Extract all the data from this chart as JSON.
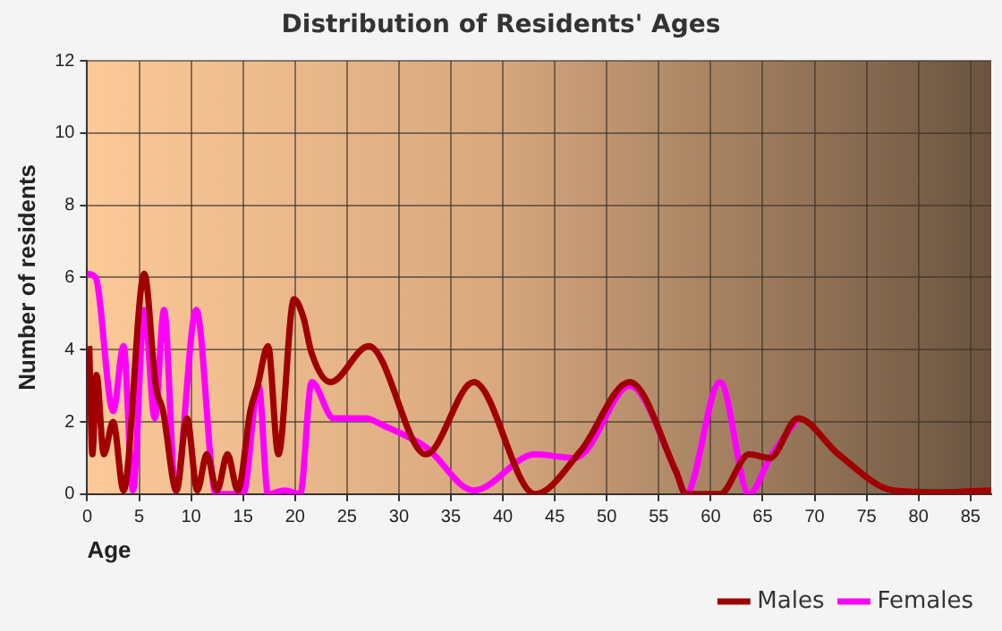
{
  "chart_data": {
    "type": "line",
    "title": "Distribution of Residents' Ages",
    "xlabel": "Age",
    "ylabel": "Number of residents",
    "xlim": [
      0,
      87
    ],
    "xticks": [
      0,
      5,
      10,
      15,
      20,
      25,
      30,
      35,
      40,
      45,
      50,
      55,
      60,
      65,
      70,
      75,
      80,
      85
    ],
    "ylim": [
      0,
      12
    ],
    "yticks": [
      0,
      2,
      4,
      6,
      8,
      10,
      12
    ],
    "grid": true,
    "legend": "bottom right",
    "marker": "none",
    "line_style": "solid",
    "series": [
      {
        "name": "Males",
        "color": "#a00000",
        "x": [
          0.2,
          0.5,
          0.9,
          1.6,
          2.5,
          3.5,
          5.5,
          6.6,
          7.3,
          8.6,
          9.6,
          10.6,
          11.5,
          12.5,
          13.5,
          14.5,
          15.7,
          16.4,
          17.4,
          18.4,
          19.9,
          20.8,
          21.6,
          23.4,
          27.1,
          32.6,
          37.2,
          43.1,
          47.5,
          52.2,
          56.7,
          57.6,
          60.9,
          63.7,
          65.7,
          68.4,
          72.3,
          77.6,
          82,
          87
        ],
        "values": [
          4.1,
          1.1,
          3.3,
          1.1,
          2,
          0.1,
          6.1,
          3,
          2.3,
          0.1,
          2.1,
          0.1,
          1.1,
          0.1,
          1.1,
          0.1,
          2.3,
          3,
          4.1,
          1.1,
          5.4,
          4.9,
          3.9,
          3.1,
          4.1,
          1.1,
          3.1,
          0,
          1.2,
          3.1,
          0.6,
          0,
          0,
          1.1,
          1,
          2.1,
          1.1,
          0.1,
          0.05,
          0.1
        ]
      },
      {
        "name": "Females",
        "color": "#ff00ff",
        "x": [
          0,
          0.8,
          2.5,
          3.5,
          4.4,
          5.5,
          6.5,
          7.4,
          8.5,
          10.5,
          12.4,
          15,
          16.5,
          17.4,
          19,
          20.5,
          21.6,
          23.7,
          26.8,
          28.5,
          32.6,
          37.2,
          43.1,
          46.9,
          48,
          52.2,
          56.7,
          57.6,
          60.9,
          63.7,
          65.7,
          68.4
        ],
        "values": [
          6.1,
          6,
          2.3,
          4.1,
          0.1,
          5.1,
          2.1,
          5.1,
          0.1,
          5.1,
          0,
          0,
          3,
          0,
          0.1,
          0,
          3.1,
          2.1,
          2.1,
          1.9,
          1.3,
          0.1,
          1.1,
          1,
          1.2,
          3,
          0.6,
          0,
          3.1,
          0,
          1,
          2.1
        ]
      }
    ]
  }
}
